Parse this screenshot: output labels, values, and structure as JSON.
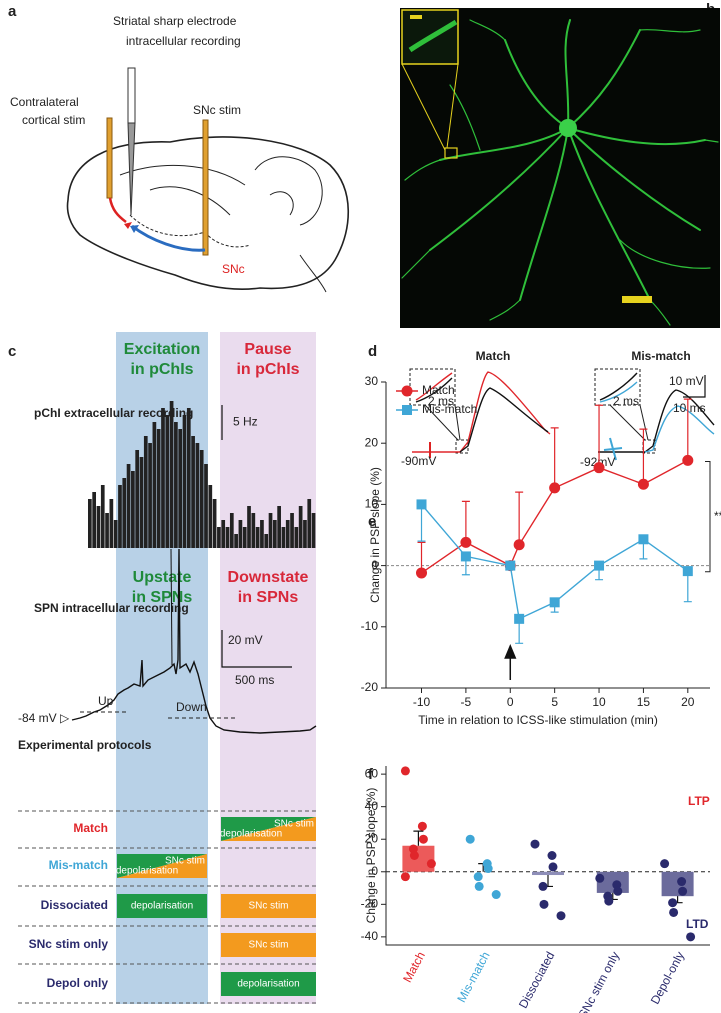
{
  "panel_labels": [
    "a",
    "b",
    "c",
    "d",
    "e",
    "f"
  ],
  "panel_a": {
    "electrode_label": [
      "Striatal sharp electrode",
      "intracellular recording"
    ],
    "cortical_label": [
      "Contralateral",
      "cortical stim"
    ],
    "snc_stim_label": "SNc stim",
    "snc_label": "SNc"
  },
  "panel_c": {
    "excitation_title": [
      "Excitation",
      "in pChIs"
    ],
    "pause_title": [
      "Pause",
      "in pChIs"
    ],
    "upstate_title": [
      "Upstate",
      "in SPNs"
    ],
    "downstate_title": [
      "Downstate",
      "in SPNs"
    ],
    "spn_label": "SPN intracellular recording",
    "mv_scale": "20 mV",
    "ms_scale": "500 ms",
    "up_label": "Up",
    "down_label": "Down",
    "resting_label": "-84 mV ▷",
    "protocols_title": "Experimental protocols",
    "protocols": [
      "Match",
      "Mis-match",
      "Dissociated",
      "SNc stim only",
      "Depol only"
    ],
    "snc_stim": "SNc stim",
    "depolarisation": "depolarisation"
  },
  "panel_d": {
    "match_title": "Match",
    "mismatch_title": "Mis-match",
    "inset_scale": "2 ms",
    "match_rest": "-90mV",
    "mismatch_rest": "-92mV",
    "mv_scale": "10 mV",
    "ms_scale": "10 ms"
  },
  "chart_data": [
    {
      "type": "rate_histogram",
      "title": "pChI extracellular recording",
      "values": [
        7,
        8,
        6,
        9,
        5,
        7,
        4,
        9,
        10,
        12,
        11,
        14,
        13,
        16,
        15,
        18,
        17,
        20,
        19,
        21,
        18,
        17,
        19,
        20,
        16,
        15,
        14,
        12,
        9,
        7,
        3,
        4,
        3,
        5,
        2,
        4,
        3,
        6,
        5,
        3,
        4,
        2,
        5,
        4,
        6,
        3,
        4,
        5,
        3,
        6,
        4,
        7,
        5
      ],
      "color": "#222222",
      "scale_bar": {
        "value": 5,
        "label": "5 Hz"
      }
    },
    {
      "type": "line",
      "x": [
        -10,
        -5,
        0,
        1,
        5,
        10,
        15,
        20
      ],
      "series": [
        {
          "name": "Match",
          "color": "#e0262b",
          "marker": "circle",
          "error_bars": "up",
          "values": [
            -1.2,
            3.8,
            0,
            3.4,
            12.7,
            16,
            13.3,
            17.2
          ],
          "errors": [
            5,
            6.7,
            0,
            8.6,
            9.8,
            10.2,
            9,
            10
          ]
        },
        {
          "name": "Mis-match",
          "color": "#3fa6d6",
          "marker": "square",
          "error_bars": "down",
          "values": [
            10,
            1.5,
            0,
            -8.7,
            -6,
            0,
            4.3,
            -0.9
          ],
          "errors": [
            6,
            3,
            0,
            4,
            1.6,
            2.3,
            3.2,
            5
          ]
        }
      ],
      "xlabel": "Time in relation to ICSS-like stimulation (min)",
      "ylabel": "Change in PSP slope (%)",
      "xlim": [
        -14,
        22.5
      ],
      "ylim": [
        -20,
        30
      ],
      "xticks": [
        -10,
        -5,
        0,
        5,
        10,
        15,
        20
      ],
      "yticks": [
        -20,
        -10,
        0,
        10,
        20,
        30
      ],
      "legend": "top-left",
      "annotation": "**"
    },
    {
      "type": "bar",
      "categories": [
        "Match",
        "Mis-match",
        "Dissociated",
        "SNc stim only",
        "Depol-only"
      ],
      "values": [
        16,
        0,
        -2,
        -13,
        -15
      ],
      "errors": [
        9,
        5,
        7,
        4,
        4
      ],
      "colors": [
        "#ec5a5a",
        "#7cc0e2",
        "#8e8eb8",
        "#6b6b9c",
        "#6b6b9c"
      ],
      "label_colors": [
        "#e0262b",
        "#3fa6d6",
        "#2a2a6c",
        "#2a2a6c",
        "#2a2a6c"
      ],
      "points": [
        [
          62,
          28,
          20,
          14,
          10,
          5,
          -3
        ],
        [
          20,
          5,
          2,
          -3,
          -9,
          -14
        ],
        [
          17,
          10,
          3,
          -9,
          -20,
          -27
        ],
        [
          -4,
          -8,
          -12,
          -15,
          -18
        ],
        [
          5,
          -6,
          -12,
          -19,
          -25,
          -40
        ]
      ],
      "ylabel": "Change in PSP slope (%)",
      "ylim": [
        -45,
        65
      ],
      "yticks": [
        -40,
        -20,
        0,
        20,
        40,
        60
      ],
      "annotations": [
        "LTP",
        "LTD"
      ]
    }
  ]
}
